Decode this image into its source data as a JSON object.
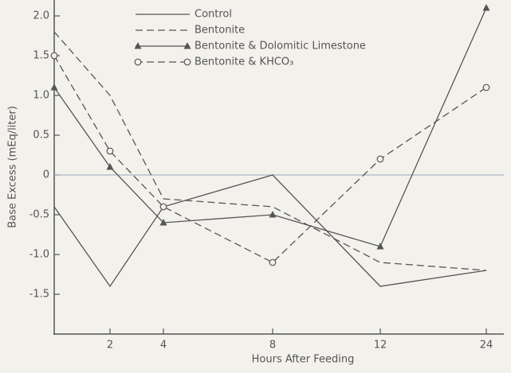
{
  "chart_data": {
    "type": "line",
    "x_label": "Hours After Feeding",
    "y_label": "Base Excess (mEq/liter)",
    "categories": [
      null,
      "2",
      "4",
      "8",
      "12",
      "24"
    ],
    "series": [
      {
        "name": "Control",
        "color": "#555555",
        "dash": false,
        "marker": null,
        "values": [
          -0.4,
          -1.4,
          -0.4,
          0,
          -1.4,
          -1.2
        ]
      },
      {
        "name": "Bentonite",
        "color": "#555555",
        "dash": true,
        "marker": null,
        "values": [
          1.8,
          1.0,
          -0.3,
          -0.4,
          -1.1,
          -1.2
        ]
      },
      {
        "name": "Bentonite & Dolomitic Limestone",
        "color": "#555555",
        "dash": false,
        "marker": "triangle",
        "values": [
          1.1,
          0.1,
          -0.6,
          -0.5,
          -0.9,
          2.1
        ]
      },
      {
        "name": "Bentonite & KHCO₃",
        "color": "#555555",
        "dash": true,
        "marker": "circle",
        "values": [
          1.5,
          0.3,
          -0.4,
          -1.1,
          0.2,
          1.1
        ]
      }
    ],
    "ylim": [
      -2,
      2.2
    ],
    "yticks": [
      {
        "value": 2,
        "label": "2.0"
      },
      1.5,
      {
        "value": 1,
        "label": "1.0"
      },
      0.5,
      0,
      -0.5,
      {
        "value": -1,
        "label": "-1.0"
      },
      -1.5
    ],
    "zero_line": true
  }
}
